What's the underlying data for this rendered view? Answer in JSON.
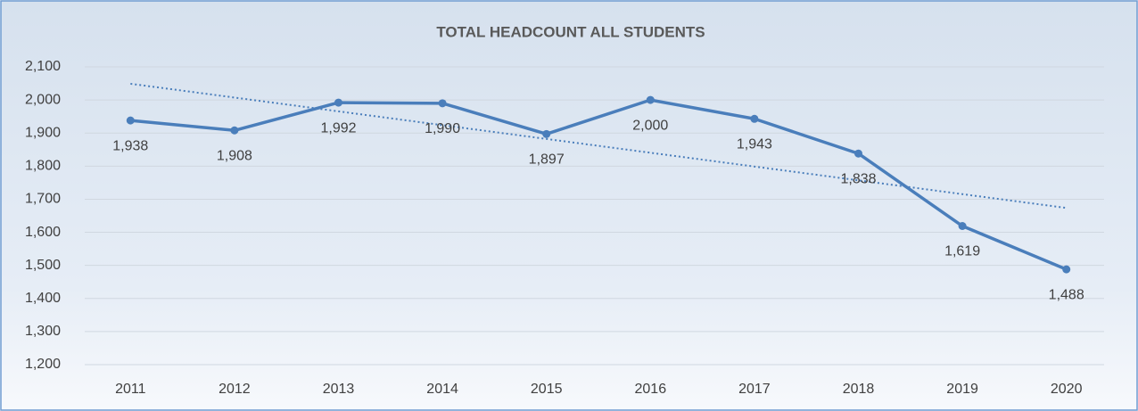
{
  "chart_data": {
    "type": "line",
    "title": "TOTAL HEADCOUNT ALL STUDENTS",
    "categories": [
      "2011",
      "2012",
      "2013",
      "2014",
      "2015",
      "2016",
      "2017",
      "2018",
      "2019",
      "2020"
    ],
    "values": [
      1938,
      1908,
      1992,
      1990,
      1897,
      2000,
      1943,
      1838,
      1619,
      1488
    ],
    "value_labels": [
      "1,938",
      "1,908",
      "1,992",
      "1,990",
      "1,897",
      "2,000",
      "1,943",
      "1,838",
      "1,619",
      "1,488"
    ],
    "color": "#4a7ebb",
    "ylim": [
      1200,
      2100
    ],
    "yticks": [
      {
        "value": 1200,
        "label": "1,200"
      },
      {
        "value": 1300,
        "label": "1,300"
      },
      {
        "value": 1400,
        "label": "1,400"
      },
      {
        "value": 1500,
        "label": "1,500"
      },
      {
        "value": 1600,
        "label": "1,600"
      },
      {
        "value": 1700,
        "label": "1,700"
      },
      {
        "value": 1800,
        "label": "1,800"
      },
      {
        "value": 1900,
        "label": "1,900"
      },
      {
        "value": 2000,
        "label": "2,000"
      },
      {
        "value": 2100,
        "label": "2,100"
      }
    ],
    "grid": true,
    "trendline": "linear"
  }
}
